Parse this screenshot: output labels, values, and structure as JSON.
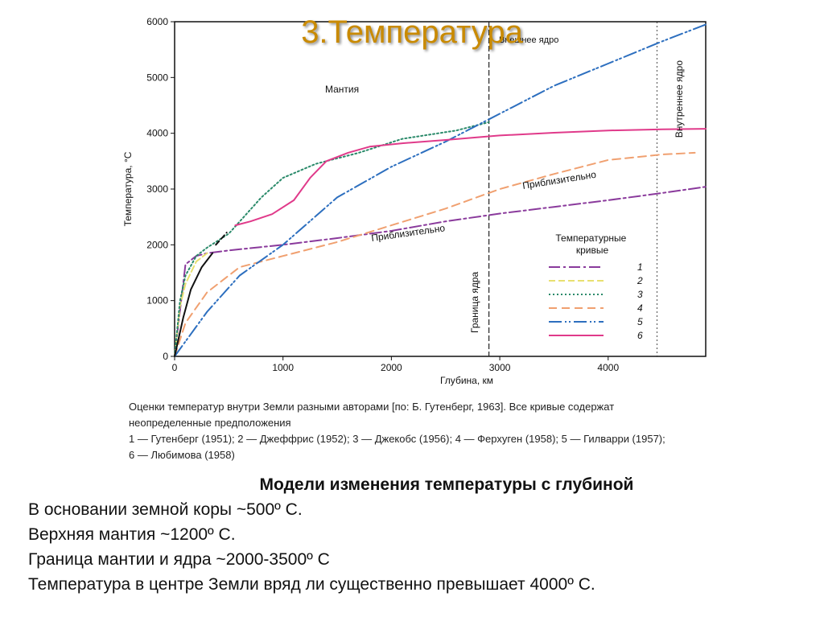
{
  "slide": {
    "title": "3.Температура"
  },
  "chart_data": {
    "type": "line",
    "xlabel": "Глубина, км",
    "ylabel": "Температура, °С",
    "xlim": [
      0,
      4900
    ],
    "ylim": [
      0,
      6000
    ],
    "x_ticks": [
      0,
      1000,
      2000,
      3000,
      4000
    ],
    "y_ticks": [
      0,
      1000,
      2000,
      3000,
      4000,
      5000,
      6000
    ],
    "grid": false,
    "legend_title": "Температурные кривые",
    "legend_position": "right",
    "region_labels": {
      "mantle": "Мантия",
      "outer_core": "Внешнее ядро",
      "inner_core": "Внутреннее ядро",
      "core_boundary": "Граница ядра"
    },
    "annotations": [
      "Приблизительно",
      "Приблизительно"
    ],
    "boundaries_x": [
      2900,
      4450
    ],
    "series": [
      {
        "name": "1",
        "color": "#8a3a9c",
        "dash": "14,4,3,4",
        "x": [
          0,
          100,
          200,
          300,
          500,
          1000,
          1500,
          2000,
          2500,
          3000,
          3500,
          4000,
          4500,
          4900
        ],
        "y": [
          0,
          1650,
          1800,
          1850,
          1900,
          2000,
          2120,
          2250,
          2420,
          2560,
          2680,
          2800,
          2930,
          3040
        ]
      },
      {
        "name": "2",
        "color": "#e8e070",
        "dash": "8,4",
        "x": [
          0,
          50,
          100,
          200,
          300
        ],
        "y": [
          0,
          900,
          1300,
          1700,
          1850
        ]
      },
      {
        "name": "3",
        "color": "#2a8a6a",
        "dash": "2,3",
        "x": [
          0,
          50,
          100,
          200,
          300,
          500,
          800,
          1000,
          1300,
          1700,
          2100,
          2600,
          2900
        ],
        "y": [
          0,
          1000,
          1450,
          1800,
          1950,
          2200,
          2850,
          3200,
          3450,
          3650,
          3900,
          4050,
          4200
        ]
      },
      {
        "name": "4",
        "color": "#f0a070",
        "dash": "10,6",
        "x": [
          0,
          100,
          300,
          600,
          1000,
          1500,
          2000,
          2500,
          3000,
          3500,
          4000,
          4500,
          4800
        ],
        "y": [
          0,
          600,
          1150,
          1600,
          1800,
          2050,
          2350,
          2650,
          3000,
          3270,
          3520,
          3620,
          3650
        ]
      },
      {
        "name": "5",
        "color": "#2d6fbf",
        "dash": "16,4,2,3,2,4",
        "x": [
          0,
          300,
          600,
          1000,
          1500,
          2000,
          2500,
          2900,
          3500,
          4000,
          4500,
          4900
        ],
        "y": [
          0,
          800,
          1450,
          2000,
          2850,
          3400,
          3850,
          4250,
          4850,
          5250,
          5650,
          5950
        ]
      },
      {
        "name": "6",
        "color": "#e03a8a",
        "dash": "",
        "x": [
          560,
          700,
          900,
          1100,
          1250,
          1400,
          1600,
          1800,
          2100,
          2500,
          3000,
          3500,
          4000,
          4500,
          4900
        ],
        "y": [
          2350,
          2420,
          2550,
          2800,
          3200,
          3500,
          3650,
          3760,
          3820,
          3880,
          3960,
          4010,
          4050,
          4070,
          4080
        ]
      },
      {
        "name": "",
        "color": "#111111",
        "dash": "",
        "x": [
          0,
          80,
          150,
          250,
          350
        ],
        "y": [
          0,
          700,
          1200,
          1600,
          1850
        ]
      },
      {
        "name": "",
        "color": "#111111",
        "dash": "6,4",
        "x": [
          380,
          450,
          480
        ],
        "y": [
          2000,
          2150,
          2220
        ]
      }
    ]
  },
  "caption": {
    "lines": [
      "Оценки температур внутри Земли разными авторами [по: Б. Гутенберг, 1963]. Все кривые содержат",
      "неопределенные предположения",
      "1 — Гутенберг (1951); 2 — Джеффрис (1952); 3 — Джекобс (1956); 4 — Ферхуген (1958); 5 — Гилварри (1957);",
      "6 — Любимова (1958)"
    ]
  },
  "notes": {
    "title": "Модели изменения температуры с глубиной",
    "lines": [
      "В основании земной коры ~500º С.",
      "Верхняя мантия ~1200º С.",
      "Граница мантии и ядра ~2000-3500º С",
      "Температура в центре Земли вряд ли существенно превышает 4000º С."
    ]
  }
}
